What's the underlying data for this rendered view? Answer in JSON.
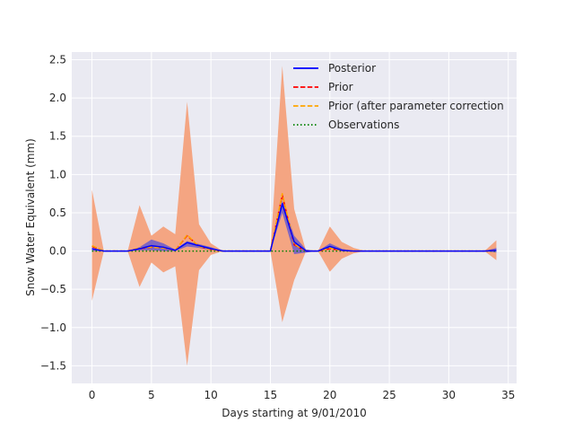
{
  "chart_data": {
    "type": "line",
    "xlabel": "Days starting at 9/01/2010",
    "ylabel": "Snow Water Equivalent (mm)",
    "xlim": [
      -1.7,
      35.7
    ],
    "ylim": [
      -1.73,
      2.6
    ],
    "xticks": [
      0,
      5,
      10,
      15,
      20,
      25,
      30,
      35
    ],
    "xtick_labels": [
      "0",
      "5",
      "10",
      "15",
      "20",
      "25",
      "30",
      "35"
    ],
    "yticks": [
      -1.5,
      -1.0,
      -0.5,
      0.0,
      0.5,
      1.0,
      1.5,
      2.0,
      2.5
    ],
    "ytick_labels": [
      "−1.5",
      "−1.0",
      "−0.5",
      "0.0",
      "0.5",
      "1.0",
      "1.5",
      "2.0",
      "2.5"
    ],
    "grid": true,
    "legend_position": "top-right",
    "x": [
      0,
      1,
      2,
      3,
      4,
      5,
      6,
      7,
      8,
      9,
      10,
      11,
      12,
      13,
      14,
      15,
      16,
      17,
      18,
      19,
      20,
      21,
      22,
      23,
      24,
      25,
      26,
      27,
      28,
      29,
      30,
      31,
      32,
      33,
      34
    ],
    "bands": [
      {
        "name": "prior-uncertainty",
        "color": "#f4a582",
        "upper": [
          0.8,
          0.0,
          0.0,
          0.0,
          0.6,
          0.2,
          0.32,
          0.22,
          1.95,
          0.35,
          0.1,
          0.0,
          0.0,
          0.0,
          0.0,
          0.0,
          2.42,
          0.55,
          0.0,
          0.0,
          0.32,
          0.12,
          0.04,
          0.0,
          0.0,
          0.0,
          0.0,
          0.0,
          0.0,
          0.0,
          0.0,
          0.0,
          0.0,
          0.0,
          0.14
        ],
        "lower": [
          -0.65,
          0.0,
          0.0,
          0.0,
          -0.47,
          -0.15,
          -0.28,
          -0.2,
          -1.5,
          -0.25,
          -0.05,
          0.0,
          0.0,
          0.0,
          0.0,
          0.0,
          -0.93,
          -0.38,
          0.0,
          0.0,
          -0.27,
          -0.1,
          -0.03,
          0.0,
          0.0,
          0.0,
          0.0,
          0.0,
          0.0,
          0.0,
          0.0,
          0.0,
          0.0,
          0.0,
          -0.12
        ]
      },
      {
        "name": "posterior-uncertainty",
        "color": "#6a5acd",
        "upper": [
          0.04,
          0.0,
          0.0,
          0.0,
          0.05,
          0.15,
          0.1,
          0.02,
          0.13,
          0.09,
          0.05,
          0.0,
          0.0,
          0.0,
          0.0,
          0.0,
          0.66,
          0.2,
          0.02,
          0.0,
          0.1,
          0.03,
          0.0,
          0.0,
          0.0,
          0.0,
          0.0,
          0.0,
          0.0,
          0.0,
          0.0,
          0.0,
          0.0,
          0.0,
          0.04
        ],
        "lower": [
          0.0,
          0.0,
          0.0,
          0.0,
          0.01,
          0.01,
          0.0,
          0.0,
          0.06,
          0.04,
          0.01,
          0.0,
          0.0,
          0.0,
          0.0,
          0.0,
          0.5,
          -0.04,
          -0.02,
          0.0,
          0.03,
          0.0,
          0.0,
          0.0,
          0.0,
          0.0,
          0.0,
          0.0,
          0.0,
          0.0,
          0.0,
          0.0,
          0.0,
          0.0,
          -0.02
        ]
      }
    ],
    "series": [
      {
        "name": "Posterior",
        "color": "#0000ff",
        "dash": "solid",
        "values": [
          0.03,
          0.0,
          0.0,
          0.0,
          0.03,
          0.07,
          0.05,
          0.01,
          0.11,
          0.07,
          0.03,
          0.0,
          0.0,
          0.0,
          0.0,
          0.0,
          0.62,
          0.12,
          0.0,
          0.0,
          0.06,
          0.01,
          0.0,
          0.0,
          0.0,
          0.0,
          0.0,
          0.0,
          0.0,
          0.0,
          0.0,
          0.0,
          0.0,
          0.0,
          0.01
        ]
      },
      {
        "name": "Prior",
        "color": "#ff0000",
        "dash": "dashed",
        "values": [
          0.06,
          0.0,
          0.0,
          0.0,
          0.03,
          0.05,
          0.04,
          0.01,
          0.2,
          0.06,
          0.02,
          0.0,
          0.0,
          0.0,
          0.0,
          0.0,
          0.73,
          0.08,
          0.0,
          0.0,
          0.03,
          0.01,
          0.0,
          0.0,
          0.0,
          0.0,
          0.0,
          0.0,
          0.0,
          0.0,
          0.0,
          0.0,
          0.0,
          0.0,
          0.01
        ]
      },
      {
        "name": "Prior (after parameter correction",
        "color": "#ffa500",
        "dash": "dashed",
        "values": [
          0.07,
          0.0,
          0.0,
          0.0,
          0.04,
          0.05,
          0.04,
          0.01,
          0.21,
          0.06,
          0.02,
          0.0,
          0.0,
          0.0,
          0.0,
          0.0,
          0.75,
          0.09,
          0.0,
          0.0,
          0.04,
          0.01,
          0.0,
          0.0,
          0.0,
          0.0,
          0.0,
          0.0,
          0.0,
          0.0,
          0.0,
          0.0,
          0.0,
          0.0,
          0.01
        ]
      },
      {
        "name": "Observations",
        "color": "#008000",
        "dash": "dotted",
        "values": [
          0.0,
          0.0,
          0.0,
          0.0,
          0.0,
          0.0,
          0.0,
          0.0,
          0.0,
          0.0,
          0.0,
          0.0,
          0.0,
          0.0,
          0.0,
          0.0,
          0.0,
          0.0,
          0.0,
          0.0,
          0.0,
          0.0,
          0.0,
          0.0,
          0.0,
          0.0,
          0.0,
          0.0,
          0.0,
          0.0,
          0.0,
          0.0,
          0.0,
          0.0,
          0.0
        ]
      }
    ],
    "colors": {
      "plot_background": "#eaeaf2",
      "grid": "#ffffff",
      "text": "#262626"
    }
  }
}
